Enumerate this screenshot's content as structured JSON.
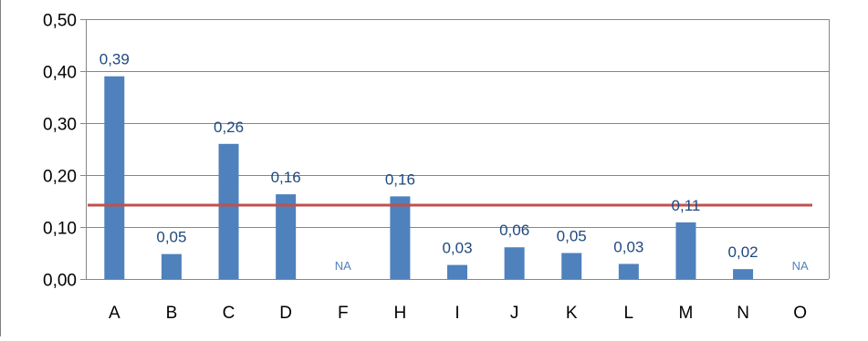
{
  "chart_data": {
    "type": "bar",
    "title": "",
    "xlabel": "",
    "ylabel": "",
    "categories": [
      "A",
      "B",
      "C",
      "D",
      "F",
      "H",
      "I",
      "J",
      "K",
      "L",
      "M",
      "N",
      "O"
    ],
    "values": [
      0.39,
      0.048,
      0.26,
      0.163,
      null,
      0.159,
      0.027,
      0.061,
      0.05,
      0.029,
      0.109,
      0.019,
      null
    ],
    "data_labels": [
      "0,39",
      "0,05",
      "0,26",
      "0,16",
      "NA",
      "0,16",
      "0,03",
      "0,06",
      "0,05",
      "0,03",
      "0,11",
      "0,02",
      "NA"
    ],
    "ylim": [
      0,
      0.5
    ],
    "yticks": [
      0,
      0.1,
      0.2,
      0.3,
      0.4,
      0.5
    ],
    "ytick_labels": [
      "0,00",
      "0,10",
      "0,20",
      "0,30",
      "0,40",
      "0,50"
    ],
    "reference_line": {
      "value": 0.142,
      "color": "#c0504d"
    },
    "bar_color": "#4f81bd",
    "label_color": "#1f497d",
    "na_label_color": "#4f81bd",
    "grid": true,
    "legend": "none"
  }
}
